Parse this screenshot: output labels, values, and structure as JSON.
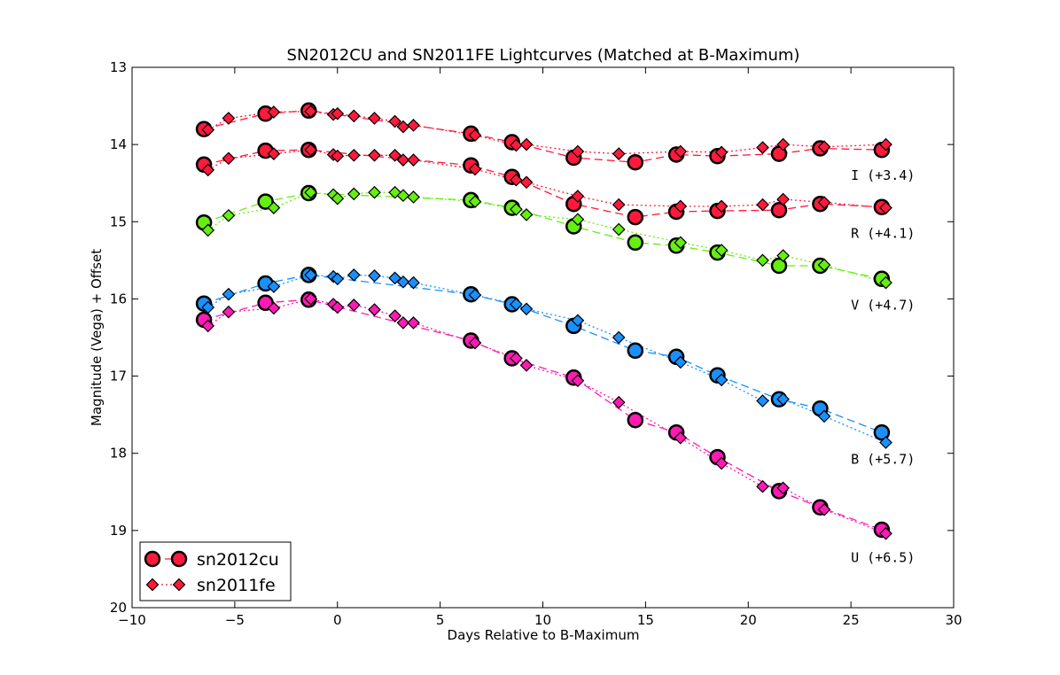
{
  "colors": {
    "I": "#ff1a3c",
    "R": "#ff1a3c",
    "V": "#66ee11",
    "B": "#1a90ff",
    "U": "#ff1ab4"
  },
  "chart_data": {
    "type": "scatter",
    "title": "SN2012CU and SN2011FE Lightcurves (Matched at B-Maximum)",
    "xlabel": "Days Relative to B-Maximum",
    "ylabel": "Magnitude (Vega) + Offset",
    "xlim": [
      -10,
      30
    ],
    "ylim": [
      20,
      13
    ],
    "y_inverted": true,
    "xticks": [
      -10,
      -5,
      0,
      5,
      10,
      15,
      20,
      25,
      30
    ],
    "xtick_labels": [
      "−10",
      "−5",
      "0",
      "5",
      "10",
      "15",
      "20",
      "25",
      "30"
    ],
    "yticks": [
      13,
      14,
      15,
      16,
      17,
      18,
      19,
      20
    ],
    "ytick_labels": [
      "13",
      "14",
      "15",
      "16",
      "17",
      "18",
      "19",
      "20"
    ],
    "legend_position": "lower-left",
    "legend": [
      {
        "label": "sn2012cu",
        "marker": "circle",
        "linestyle": "dashed"
      },
      {
        "label": "sn2011fe",
        "marker": "diamond",
        "linestyle": "dotted"
      }
    ],
    "band_labels": [
      {
        "band": "I",
        "text": "I (+3.4)",
        "x": 25,
        "y": 14.4
      },
      {
        "band": "R",
        "text": "R (+4.1)",
        "x": 25,
        "y": 15.15
      },
      {
        "band": "V",
        "text": "V (+4.7)",
        "x": 25,
        "y": 16.08
      },
      {
        "band": "B",
        "text": "B (+5.7)",
        "x": 25,
        "y": 18.08
      },
      {
        "band": "U",
        "text": "U (+6.5)",
        "x": 25,
        "y": 19.35
      }
    ],
    "series": [
      {
        "name": "sn2012cu",
        "band": "I",
        "marker": "circle",
        "x": [
          -6.5,
          -3.5,
          -1.4,
          6.5,
          8.5,
          11.5,
          14.5,
          16.5,
          18.5,
          21.5,
          23.5,
          26.5
        ],
        "y": [
          13.8,
          13.6,
          13.56,
          13.86,
          13.97,
          14.17,
          14.23,
          14.13,
          14.15,
          14.12,
          14.05,
          14.07
        ]
      },
      {
        "name": "sn2011fe",
        "band": "I",
        "marker": "diamond",
        "x": [
          -6.3,
          -5.3,
          -3.1,
          -1.3,
          -0.2,
          0.0,
          0.8,
          1.8,
          2.8,
          3.2,
          3.7,
          6.7,
          8.7,
          9.2,
          11.7,
          13.7,
          16.7,
          18.7,
          20.7,
          21.7,
          23.7,
          26.7
        ],
        "y": [
          13.81,
          13.66,
          13.58,
          13.57,
          13.61,
          13.6,
          13.63,
          13.66,
          13.7,
          13.77,
          13.75,
          13.88,
          14.01,
          14.0,
          14.09,
          14.12,
          14.09,
          14.1,
          14.04,
          14.0,
          14.03,
          14.0
        ]
      },
      {
        "name": "sn2012cu",
        "band": "R",
        "marker": "circle",
        "x": [
          -6.5,
          -3.5,
          -1.4,
          6.5,
          8.5,
          11.5,
          14.5,
          16.5,
          18.5,
          21.5,
          23.5,
          26.5
        ],
        "y": [
          14.26,
          14.08,
          14.07,
          14.27,
          14.42,
          14.77,
          14.94,
          14.87,
          14.86,
          14.85,
          14.77,
          14.81
        ]
      },
      {
        "name": "sn2011fe",
        "band": "R",
        "marker": "diamond",
        "x": [
          -6.3,
          -5.3,
          -3.1,
          -1.3,
          -0.2,
          0.0,
          0.8,
          1.8,
          2.8,
          3.2,
          3.7,
          6.7,
          8.7,
          9.2,
          11.7,
          13.7,
          16.7,
          18.7,
          20.7,
          21.7,
          23.7,
          26.7
        ],
        "y": [
          14.33,
          14.18,
          14.12,
          14.07,
          14.13,
          14.15,
          14.14,
          14.14,
          14.14,
          14.2,
          14.2,
          14.32,
          14.46,
          14.49,
          14.67,
          14.78,
          14.8,
          14.8,
          14.78,
          14.71,
          14.75,
          14.82
        ]
      },
      {
        "name": "sn2012cu",
        "band": "V",
        "marker": "circle",
        "x": [
          -6.5,
          -3.5,
          -1.4,
          6.5,
          8.5,
          11.5,
          14.5,
          16.5,
          18.5,
          21.5,
          23.5,
          26.5
        ],
        "y": [
          15.01,
          14.74,
          14.63,
          14.72,
          14.82,
          15.06,
          15.27,
          15.31,
          15.4,
          15.57,
          15.57,
          15.74
        ]
      },
      {
        "name": "sn2011fe",
        "band": "V",
        "marker": "diamond",
        "x": [
          -6.3,
          -5.3,
          -3.1,
          -1.3,
          -0.2,
          0.0,
          0.8,
          1.8,
          2.8,
          3.2,
          3.7,
          6.7,
          8.7,
          9.2,
          11.7,
          13.7,
          16.7,
          18.7,
          20.7,
          21.7,
          23.7,
          26.7
        ],
        "y": [
          15.11,
          14.92,
          14.82,
          14.62,
          14.65,
          14.7,
          14.64,
          14.62,
          14.62,
          14.66,
          14.68,
          14.74,
          14.84,
          14.91,
          14.97,
          15.1,
          15.27,
          15.37,
          15.5,
          15.44,
          15.56,
          15.79
        ]
      },
      {
        "name": "sn2012cu",
        "band": "B",
        "marker": "circle",
        "x": [
          -6.5,
          -3.5,
          -1.4,
          6.5,
          8.5,
          11.5,
          14.5,
          16.5,
          18.5,
          21.5,
          23.5,
          26.5
        ],
        "y": [
          16.06,
          15.8,
          15.69,
          15.94,
          16.07,
          16.35,
          16.67,
          16.75,
          16.99,
          17.3,
          17.42,
          17.73
        ]
      },
      {
        "name": "sn2011fe",
        "band": "B",
        "marker": "diamond",
        "x": [
          -6.3,
          -5.3,
          -3.1,
          -1.3,
          -0.2,
          0.0,
          0.8,
          1.8,
          2.8,
          3.2,
          3.7,
          6.7,
          8.7,
          9.2,
          11.7,
          13.7,
          16.7,
          18.7,
          20.7,
          21.7,
          23.7,
          26.7
        ],
        "y": [
          16.11,
          15.94,
          15.84,
          15.69,
          15.71,
          15.74,
          15.69,
          15.7,
          15.73,
          15.78,
          15.79,
          15.95,
          16.07,
          16.13,
          16.28,
          16.5,
          16.82,
          17.05,
          17.32,
          17.3,
          17.52,
          17.86
        ]
      },
      {
        "name": "sn2012cu",
        "band": "U",
        "marker": "circle",
        "x": [
          -6.5,
          -3.5,
          -1.4,
          6.5,
          8.5,
          11.5,
          14.5,
          16.5,
          18.5,
          21.5,
          23.5,
          26.5
        ],
        "y": [
          16.27,
          16.05,
          16.01,
          16.54,
          16.77,
          17.02,
          17.57,
          17.73,
          18.05,
          18.49,
          18.7,
          18.99
        ]
      },
      {
        "name": "sn2011fe",
        "band": "U",
        "marker": "diamond",
        "x": [
          -6.3,
          -5.3,
          -3.1,
          -1.3,
          -0.2,
          0.0,
          0.8,
          1.8,
          2.8,
          3.2,
          3.7,
          6.7,
          8.7,
          9.2,
          11.7,
          13.7,
          16.7,
          18.7,
          20.7,
          21.7,
          23.7,
          26.7
        ],
        "y": [
          16.35,
          16.17,
          16.12,
          16.0,
          16.07,
          16.11,
          16.08,
          16.14,
          16.22,
          16.31,
          16.31,
          16.57,
          16.77,
          16.86,
          17.06,
          17.34,
          17.8,
          18.13,
          18.43,
          18.45,
          18.73,
          19.04
        ]
      }
    ]
  }
}
